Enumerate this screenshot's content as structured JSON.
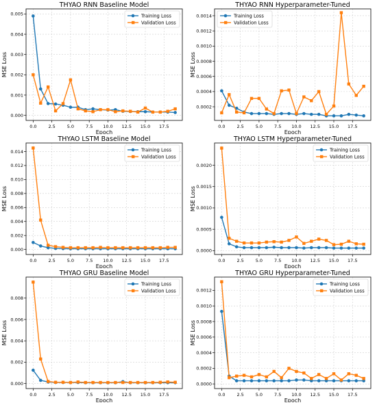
{
  "chart_data": [
    {
      "type": "line",
      "title": "THYAO RNN Baseline Model",
      "xlabel": "Epoch",
      "ylabel": "MSE Loss",
      "xlim": [
        -0.95,
        19.95
      ],
      "ylim": [
        -0.00025,
        0.00525
      ],
      "x_ticks": [
        0.0,
        2.5,
        5.0,
        7.5,
        10.0,
        12.5,
        15.0,
        17.5
      ],
      "x_tick_labels": [
        "0.0",
        "2.5",
        "5.0",
        "7.5",
        "10.0",
        "12.5",
        "15.0",
        "17.5"
      ],
      "y_ticks": [
        0,
        0.001,
        0.002,
        0.003,
        0.004,
        0.005
      ],
      "y_tick_labels": [
        "0.000",
        "0.001",
        "0.002",
        "0.003",
        "0.004",
        "0.005"
      ],
      "grid": true,
      "legend_position": "top-right",
      "x": [
        0,
        1,
        2,
        3,
        4,
        5,
        6,
        7,
        8,
        9,
        10,
        11,
        12,
        13,
        14,
        15,
        16,
        17,
        18,
        19
      ],
      "series": [
        {
          "name": "Training Loss",
          "color": "#1f77b4",
          "marker": "circle",
          "values": [
            0.0049,
            0.0013,
            0.00058,
            0.00056,
            0.0005,
            0.0004,
            0.0004,
            0.00028,
            0.00032,
            0.00028,
            0.00026,
            0.00028,
            0.0002,
            0.00019,
            0.00018,
            0.00018,
            0.00016,
            0.00016,
            0.00016,
            0.00014
          ]
        },
        {
          "name": "Validation Loss",
          "color": "#ff7f0e",
          "marker": "square",
          "values": [
            0.002,
            0.0006,
            0.0014,
            0.00022,
            0.00058,
            0.00175,
            0.00032,
            0.00022,
            0.00018,
            0.00028,
            0.00028,
            0.00018,
            0.00022,
            0.0002,
            0.00016,
            0.00036,
            0.00016,
            0.00016,
            0.0002,
            0.00032
          ]
        }
      ]
    },
    {
      "type": "line",
      "title": "THYAO RNN Hyperparameter-Tuned",
      "xlabel": "Epoch",
      "ylabel": "MSE Loss",
      "xlim": [
        -0.95,
        19.95
      ],
      "ylim": [
        2e-05,
        0.00149
      ],
      "x_ticks": [
        0.0,
        2.5,
        5.0,
        7.5,
        10.0,
        12.5,
        15.0,
        17.5
      ],
      "x_tick_labels": [
        "0.0",
        "2.5",
        "5.0",
        "7.5",
        "10.0",
        "12.5",
        "15.0",
        "17.5"
      ],
      "y_ticks": [
        0.0002,
        0.0004,
        0.0006,
        0.0008,
        0.001,
        0.0012,
        0.0014
      ],
      "y_tick_labels": [
        "0.0002",
        "0.0004",
        "0.0006",
        "0.0008",
        "0.0010",
        "0.0012",
        "0.0014"
      ],
      "grid": true,
      "legend_position": "top-left",
      "x": [
        0,
        1,
        2,
        3,
        4,
        5,
        6,
        7,
        8,
        9,
        10,
        11,
        12,
        13,
        14,
        15,
        16,
        17,
        18,
        19
      ],
      "series": [
        {
          "name": "Training Loss",
          "color": "#1f77b4",
          "marker": "circle",
          "values": [
            0.00041,
            0.00022,
            0.00018,
            0.00013,
            0.00011,
            0.00011,
            0.00011,
            0.0001,
            0.00011,
            0.00011,
            0.0001,
            0.00011,
            0.0001,
            0.0001,
            8e-05,
            8e-05,
            8e-05,
            0.0001,
            9e-05,
            8e-05
          ]
        },
        {
          "name": "Validation Loss",
          "color": "#ff7f0e",
          "marker": "square",
          "values": [
            0.00012,
            0.00036,
            0.00013,
            0.00012,
            0.00031,
            0.00031,
            0.00017,
            0.00011,
            0.00041,
            0.00042,
            0.00011,
            0.00033,
            0.00028,
            0.0004,
            0.0001,
            0.00021,
            0.00144,
            0.0005,
            0.00035,
            0.00047
          ]
        }
      ]
    },
    {
      "type": "line",
      "title": "THYAO LSTM Baseline Model",
      "xlabel": "Epoch",
      "ylabel": "MSE Loss",
      "xlim": [
        -0.95,
        19.95
      ],
      "ylim": [
        -0.00072,
        0.01522
      ],
      "x_ticks": [
        0.0,
        2.5,
        5.0,
        7.5,
        10.0,
        12.5,
        15.0,
        17.5
      ],
      "x_tick_labels": [
        "0.0",
        "2.5",
        "5.0",
        "7.5",
        "10.0",
        "12.5",
        "15.0",
        "17.5"
      ],
      "y_ticks": [
        0,
        0.002,
        0.004,
        0.006,
        0.008,
        0.01,
        0.012,
        0.014
      ],
      "y_tick_labels": [
        "0.000",
        "0.002",
        "0.004",
        "0.006",
        "0.008",
        "0.010",
        "0.012",
        "0.014"
      ],
      "grid": true,
      "legend_position": "top-right",
      "x": [
        0,
        1,
        2,
        3,
        4,
        5,
        6,
        7,
        8,
        9,
        10,
        11,
        12,
        13,
        14,
        15,
        16,
        17,
        18,
        19
      ],
      "series": [
        {
          "name": "Training Loss",
          "color": "#1f77b4",
          "marker": "circle",
          "values": [
            0.001,
            0.0005,
            0.00025,
            0.00015,
            0.00012,
            0.0001,
            0.0001,
            0.0001,
            0.0001,
            0.0001,
            0.0001,
            0.0001,
            0.0001,
            0.0001,
            0.0001,
            0.0001,
            0.0001,
            0.0001,
            0.0001,
            0.0001
          ]
        },
        {
          "name": "Validation Loss",
          "color": "#ff7f0e",
          "marker": "square",
          "values": [
            0.0145,
            0.0042,
            0.0006,
            0.0004,
            0.0003,
            0.00025,
            0.00025,
            0.00025,
            0.00025,
            0.0003,
            0.00025,
            0.00025,
            0.00025,
            0.00025,
            0.00025,
            0.00025,
            0.00025,
            0.00025,
            0.0003,
            0.0003
          ]
        }
      ]
    },
    {
      "type": "line",
      "title": "THYAO LSTM Hyperparameter-Tuned",
      "xlabel": "Epoch",
      "ylabel": "MSE Loss",
      "xlim": [
        -0.95,
        19.95
      ],
      "ylim": [
        -9e-05,
        0.00252
      ],
      "x_ticks": [
        0.0,
        2.5,
        5.0,
        7.5,
        10.0,
        12.5,
        15.0,
        17.5
      ],
      "x_tick_labels": [
        "0.0",
        "2.5",
        "5.0",
        "7.5",
        "10.0",
        "12.5",
        "15.0",
        "17.5"
      ],
      "y_ticks": [
        0,
        0.0005,
        0.001,
        0.0015,
        0.002
      ],
      "y_tick_labels": [
        "0.0000",
        "0.0005",
        "0.0010",
        "0.0015",
        "0.0020"
      ],
      "grid": true,
      "legend_position": "top-right",
      "x": [
        0,
        1,
        2,
        3,
        4,
        5,
        6,
        7,
        8,
        9,
        10,
        11,
        12,
        13,
        14,
        15,
        16,
        17,
        18,
        19
      ],
      "series": [
        {
          "name": "Training Loss",
          "color": "#1f77b4",
          "marker": "circle",
          "values": [
            0.00078,
            0.00016,
            9e-05,
            7e-05,
            7e-05,
            7e-05,
            7e-05,
            8e-05,
            7e-05,
            7e-05,
            7e-05,
            6e-05,
            7e-05,
            7e-05,
            7e-05,
            6e-05,
            6e-05,
            6e-05,
            6e-05,
            6e-05
          ]
        },
        {
          "name": "Validation Loss",
          "color": "#ff7f0e",
          "marker": "square",
          "values": [
            0.0024,
            0.00029,
            0.00022,
            0.00018,
            0.00018,
            0.00018,
            0.0002,
            0.00021,
            0.0002,
            0.00024,
            0.00032,
            0.00017,
            0.00022,
            0.00027,
            0.00024,
            0.00014,
            0.00015,
            0.00022,
            0.00016,
            0.00015
          ]
        }
      ]
    },
    {
      "type": "line",
      "title": "THYAO GRU Baseline Model",
      "xlabel": "Epoch",
      "ylabel": "MSE Loss",
      "xlim": [
        -0.95,
        19.95
      ],
      "ylim": [
        -0.00047,
        0.00997
      ],
      "x_ticks": [
        0.0,
        2.5,
        5.0,
        7.5,
        10.0,
        12.5,
        15.0,
        17.5
      ],
      "x_tick_labels": [
        "0.0",
        "2.5",
        "5.0",
        "7.5",
        "10.0",
        "12.5",
        "15.0",
        "17.5"
      ],
      "y_ticks": [
        0,
        0.002,
        0.004,
        0.006,
        0.008
      ],
      "y_tick_labels": [
        "0.000",
        "0.002",
        "0.004",
        "0.006",
        "0.008"
      ],
      "grid": true,
      "legend_position": "top-right",
      "x": [
        0,
        1,
        2,
        3,
        4,
        5,
        6,
        7,
        8,
        9,
        10,
        11,
        12,
        13,
        14,
        15,
        16,
        17,
        18,
        19
      ],
      "series": [
        {
          "name": "Training Loss",
          "color": "#1f77b4",
          "marker": "circle",
          "values": [
            0.00125,
            0.0003,
            0.00015,
            0.0001,
            0.0001,
            0.0001,
            0.0001,
            8e-05,
            8e-05,
            8e-05,
            8e-05,
            8e-05,
            0.00018,
            8e-05,
            8e-05,
            8e-05,
            8e-05,
            8e-05,
            8e-05,
            8e-05
          ]
        },
        {
          "name": "Validation Loss",
          "color": "#ff7f0e",
          "marker": "square",
          "values": [
            0.0095,
            0.0023,
            0.0002,
            0.00012,
            0.00012,
            0.0001,
            0.00015,
            0.0001,
            0.0001,
            0.0001,
            0.0001,
            0.0001,
            0.0001,
            0.0001,
            0.0001,
            0.0001,
            0.0001,
            0.00012,
            0.00015,
            0.00012
          ]
        }
      ]
    },
    {
      "type": "line",
      "title": "THYAO GRU Hyperparameter-Tuned",
      "xlabel": "Epoch",
      "ylabel": "MSE Loss",
      "xlim": [
        -0.95,
        19.95
      ],
      "ylim": [
        -6e-05,
        0.00137
      ],
      "x_ticks": [
        0.0,
        2.5,
        5.0,
        7.5,
        10.0,
        12.5,
        15.0,
        17.5
      ],
      "x_tick_labels": [
        "0.0",
        "2.5",
        "5.0",
        "7.5",
        "10.0",
        "12.5",
        "15.0",
        "17.5"
      ],
      "y_ticks": [
        0,
        0.0002,
        0.0004,
        0.0006,
        0.0008,
        0.001,
        0.0012
      ],
      "y_tick_labels": [
        "0.0000",
        "0.0002",
        "0.0004",
        "0.0006",
        "0.0008",
        "0.0010",
        "0.0012"
      ],
      "grid": true,
      "legend_position": "top-right",
      "x": [
        0,
        1,
        2,
        3,
        4,
        5,
        6,
        7,
        8,
        9,
        10,
        11,
        12,
        13,
        14,
        15,
        16,
        17,
        18,
        19
      ],
      "series": [
        {
          "name": "Training Loss",
          "color": "#1f77b4",
          "marker": "circle",
          "values": [
            0.00093,
            0.0001,
            4e-05,
            4e-05,
            4e-05,
            4e-05,
            4e-05,
            4e-05,
            4e-05,
            4e-05,
            5e-05,
            5e-05,
            4e-05,
            4e-05,
            4e-05,
            4e-05,
            4e-05,
            4e-05,
            4e-05,
            4e-05
          ]
        },
        {
          "name": "Validation Loss",
          "color": "#ff7f0e",
          "marker": "square",
          "values": [
            0.00131,
            8e-05,
            0.0001,
            0.00011,
            9e-05,
            0.00012,
            9e-05,
            0.00016,
            8e-05,
            0.0002,
            0.00016,
            0.00014,
            7e-05,
            0.00012,
            7e-05,
            0.00013,
            5e-05,
            0.00013,
            0.00011,
            7e-05
          ]
        }
      ]
    }
  ]
}
